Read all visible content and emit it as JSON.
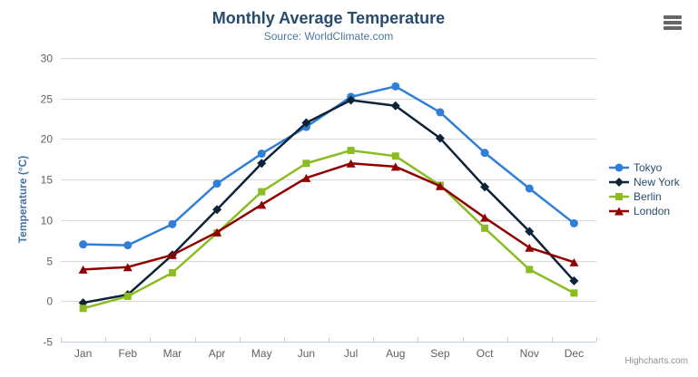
{
  "chart": {
    "credit": "Highcharts.com",
    "context_menu_icon": "hamburger"
  },
  "chart_data": {
    "type": "line",
    "title": "Monthly Average Temperature",
    "subtitle": "Source: WorldClimate.com",
    "xlabel": "",
    "ylabel": "Temperature (°C)",
    "ylim": [
      -5,
      30
    ],
    "y_ticks": [
      -5,
      0,
      5,
      10,
      15,
      20,
      25,
      30
    ],
    "grid": true,
    "legend_position": "right",
    "categories": [
      "Jan",
      "Feb",
      "Mar",
      "Apr",
      "May",
      "Jun",
      "Jul",
      "Aug",
      "Sep",
      "Oct",
      "Nov",
      "Dec"
    ],
    "series": [
      {
        "name": "Tokyo",
        "color": "#2f7ed8",
        "marker": "circle",
        "values": [
          7.0,
          6.9,
          9.5,
          14.5,
          18.2,
          21.5,
          25.2,
          26.5,
          23.3,
          18.3,
          13.9,
          9.6
        ]
      },
      {
        "name": "New York",
        "color": "#0d233a",
        "marker": "diamond",
        "values": [
          -0.2,
          0.8,
          5.7,
          11.3,
          17.0,
          22.0,
          24.8,
          24.1,
          20.1,
          14.1,
          8.6,
          2.5
        ]
      },
      {
        "name": "Berlin",
        "color": "#8bbc21",
        "marker": "square",
        "values": [
          -0.9,
          0.6,
          3.5,
          8.4,
          13.5,
          17.0,
          18.6,
          17.9,
          14.3,
          9.0,
          3.9,
          1.0
        ]
      },
      {
        "name": "London",
        "color": "#910000",
        "marker": "triangle",
        "values": [
          3.9,
          4.2,
          5.7,
          8.5,
          11.9,
          15.2,
          17.0,
          16.6,
          14.2,
          10.3,
          6.6,
          4.8
        ]
      }
    ],
    "style_colors": {
      "gridline": "#d8d8d8",
      "axis_line": "#c0d0e0",
      "axis_labels": "#606060",
      "title": "#274b6d",
      "subtitle": "#4d759e",
      "legend_text": "#274b6d"
    }
  }
}
